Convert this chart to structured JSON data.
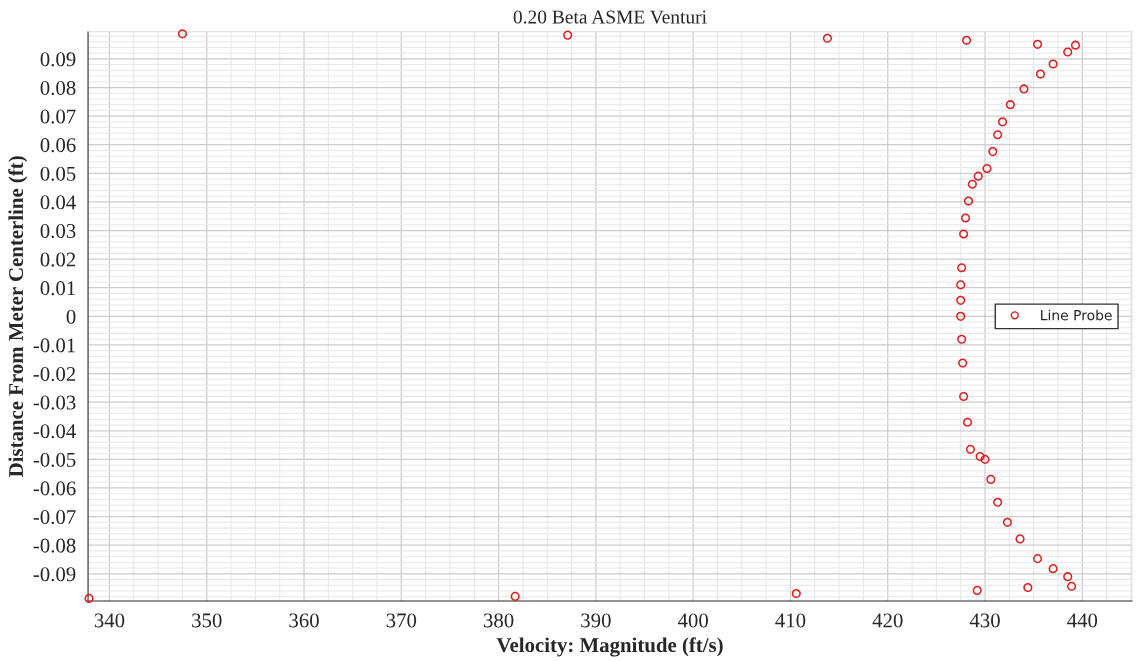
{
  "chart_data": {
    "type": "scatter",
    "title": "0.20 Beta ASME Venturi",
    "xlabel": "Velocity: Magnitude (ft/s)",
    "ylabel": "Distance From Meter Centerline (ft)",
    "xlim": [
      337.8,
      445.1
    ],
    "ylim": [
      -0.0995,
      0.0995
    ],
    "xticks": [
      340,
      350,
      360,
      370,
      380,
      390,
      400,
      410,
      420,
      430,
      440
    ],
    "yticks": [
      {
        "value": -0.09,
        "label": "-0.09"
      },
      {
        "value": -0.08,
        "label": "-0.08"
      },
      {
        "value": -0.07,
        "label": "-0.07"
      },
      {
        "value": -0.06,
        "label": "-0.06"
      },
      {
        "value": -0.05,
        "label": "-0.05"
      },
      {
        "value": -0.04,
        "label": "-0.04"
      },
      {
        "value": -0.03,
        "label": "-0.03"
      },
      {
        "value": -0.02,
        "label": "-0.02"
      },
      {
        "value": -0.01,
        "label": "-0.01"
      },
      0,
      0.01,
      0.02,
      0.03,
      0.04,
      0.05,
      0.06,
      0.07,
      0.08,
      0.09
    ],
    "grid": true,
    "legend": "right",
    "marker": "circle",
    "series": [
      {
        "name": "Line Probe",
        "color": "#e02020",
        "x": [
          337.9,
          381.7,
          410.6,
          429.2,
          434.4,
          438.9,
          438.5,
          437.0,
          435.4,
          433.6,
          432.3,
          431.3,
          430.6,
          430.0,
          429.5,
          428.5,
          428.2,
          427.8,
          427.7,
          427.6,
          427.5,
          427.5,
          427.5,
          427.6,
          427.8,
          428.0,
          428.3,
          428.7,
          429.3,
          430.2,
          430.8,
          431.3,
          431.8,
          432.6,
          434.0,
          435.7,
          437.0,
          438.5,
          439.3,
          347.5,
          387.1,
          413.8,
          428.1,
          435.4
        ],
        "values": [
          -0.0986,
          -0.0979,
          -0.0969,
          -0.0958,
          -0.0948,
          -0.0944,
          -0.091,
          -0.0882,
          -0.0847,
          -0.0778,
          -0.072,
          -0.065,
          -0.057,
          -0.05,
          -0.049,
          -0.0465,
          -0.037,
          -0.028,
          -0.0163,
          -0.008,
          0.0,
          0.0056,
          0.011,
          0.017,
          0.0288,
          0.0344,
          0.0403,
          0.0462,
          0.049,
          0.0517,
          0.0576,
          0.0635,
          0.068,
          0.074,
          0.0795,
          0.0847,
          0.0882,
          0.0924,
          0.0948,
          0.0988,
          0.0983,
          0.0972,
          0.0965,
          0.0951
        ]
      }
    ]
  }
}
